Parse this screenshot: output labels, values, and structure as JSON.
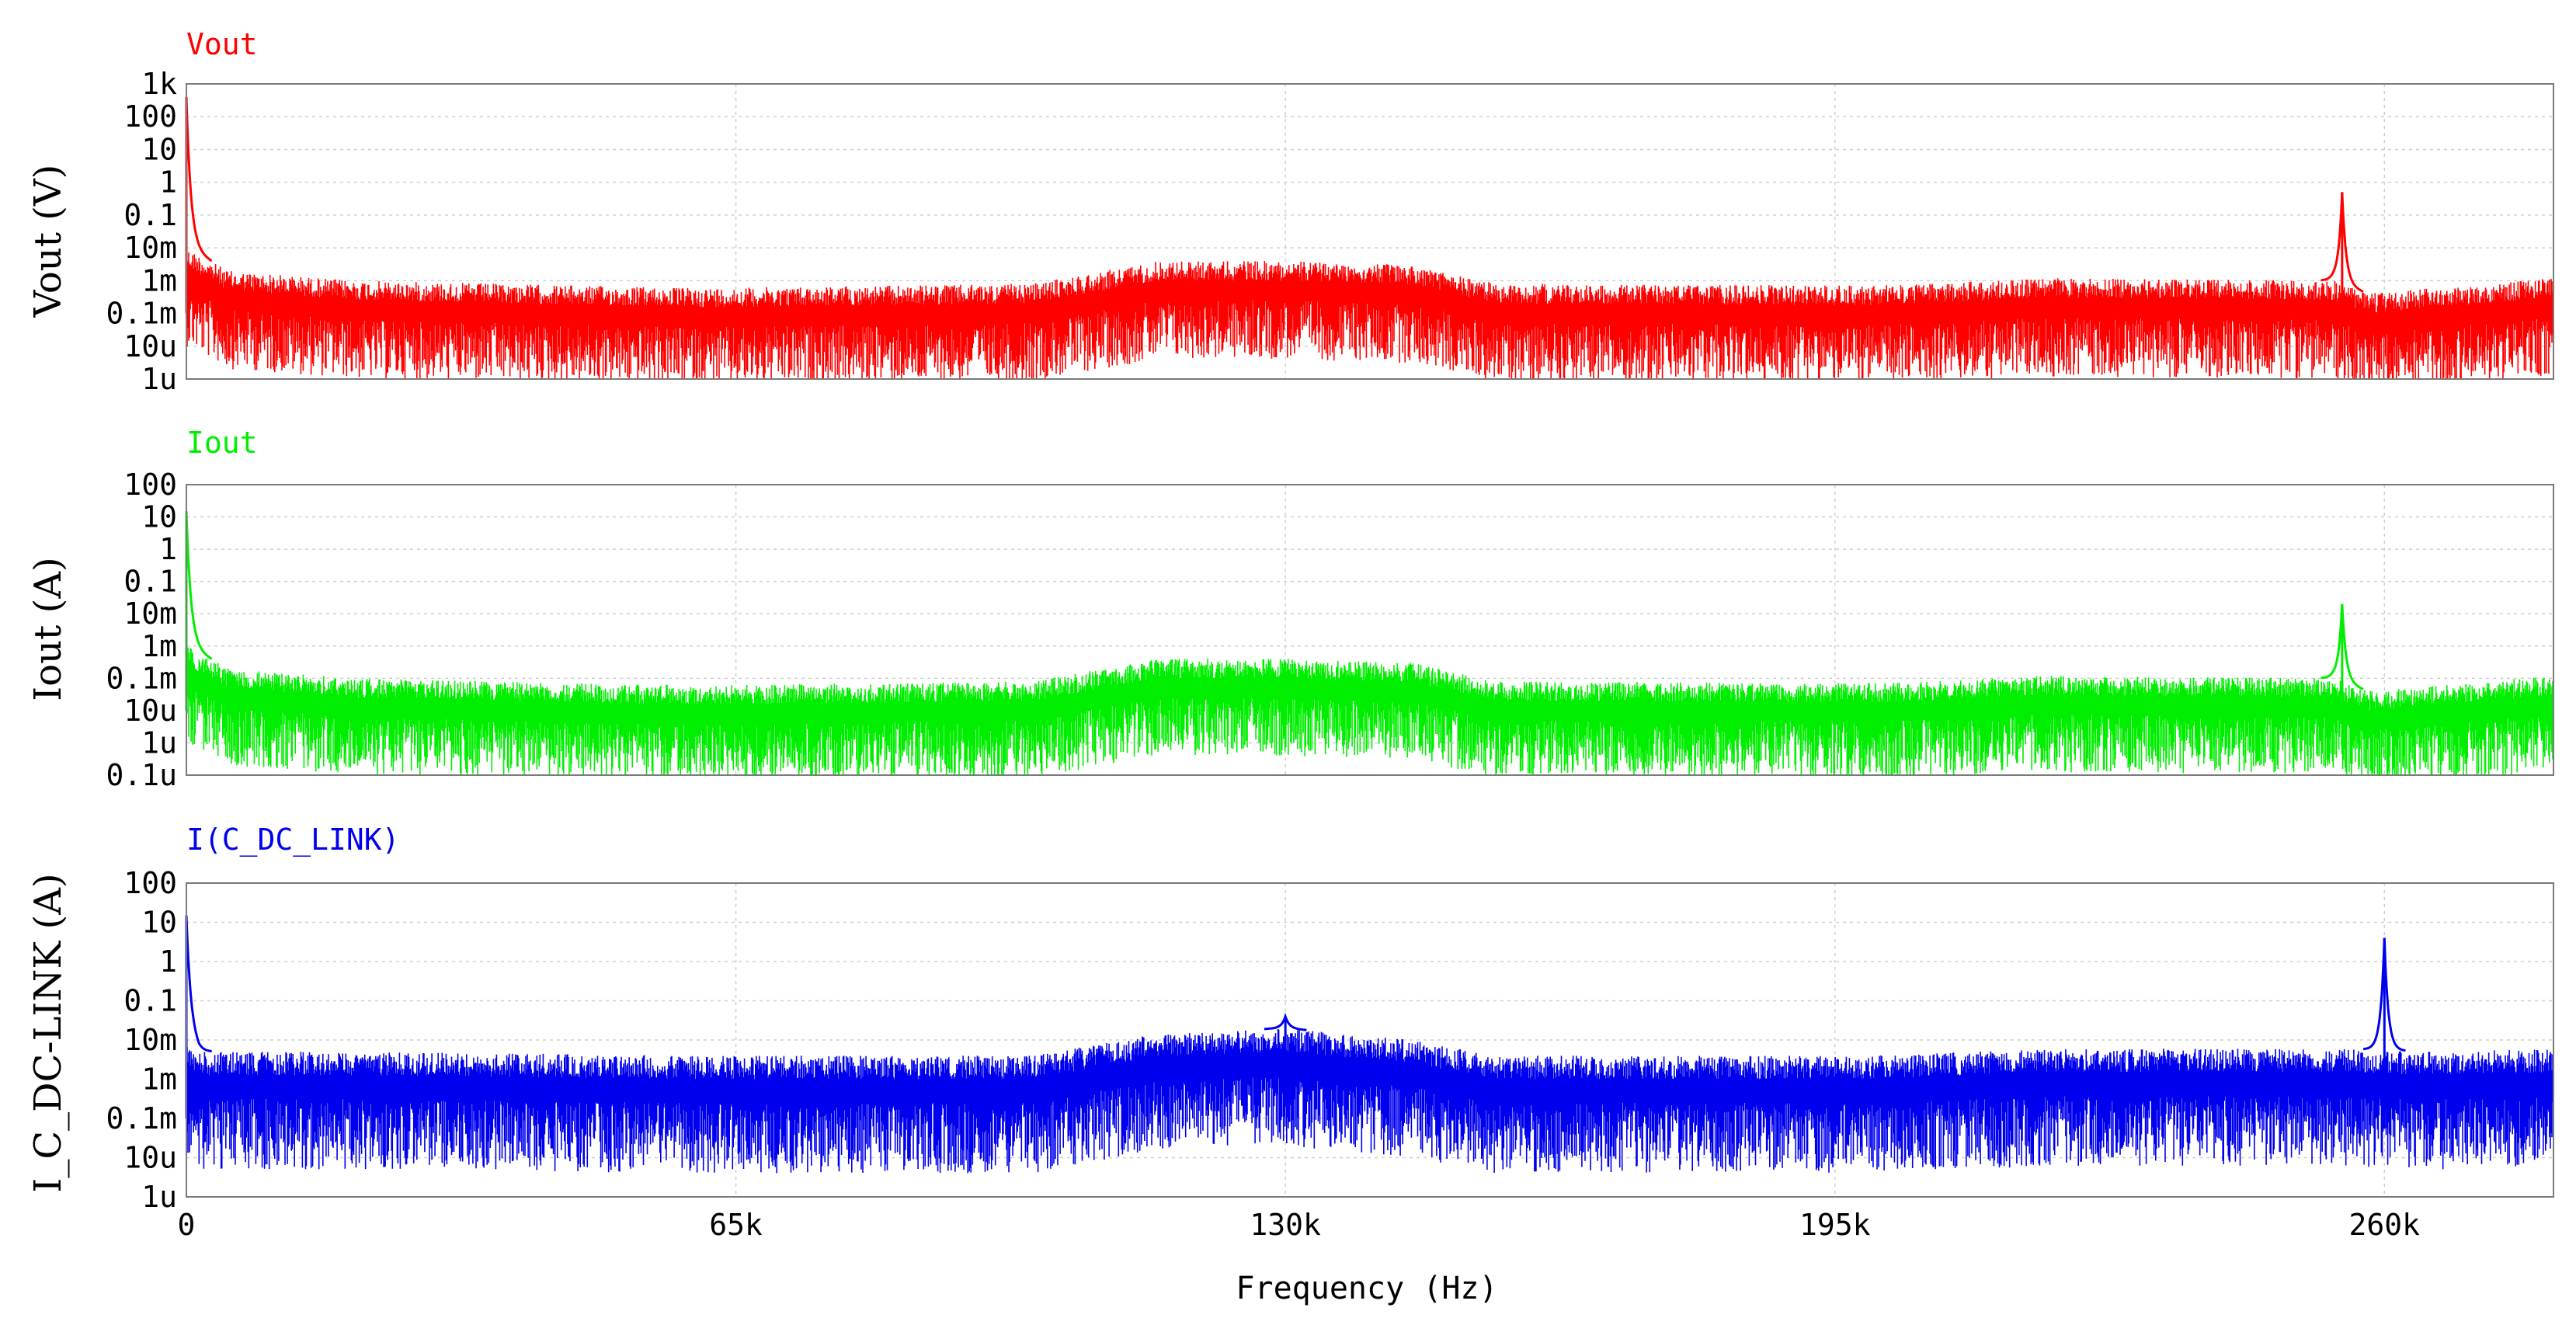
{
  "chart_data": [
    {
      "type": "line",
      "title": "Vout",
      "ylabel": "Vout (V)",
      "xlabel": "",
      "color": "#ff0000",
      "yscale": "log",
      "ylim": [
        1e-06,
        1000
      ],
      "xlim": [
        0,
        280000
      ],
      "yticks": [
        1000,
        100,
        10,
        1,
        0.1,
        0.01,
        0.001,
        0.0001,
        1e-05,
        1e-06
      ],
      "ytick_labels": [
        "1k",
        "100",
        "10",
        "1",
        "0.1",
        "10m",
        "1m",
        "0.1m",
        "10u",
        "1u"
      ],
      "grid": true,
      "series": [
        {
          "name": "Vout",
          "peaks": [
            {
              "x": 0,
              "y": 400
            },
            {
              "x": 255000,
              "y": 0.5
            }
          ],
          "envelope": [
            {
              "x": 0,
              "y": 0.01
            },
            {
              "x": 5000,
              "y": 0.002
            },
            {
              "x": 20000,
              "y": 0.001
            },
            {
              "x": 60000,
              "y": 0.0006
            },
            {
              "x": 100000,
              "y": 0.0008
            },
            {
              "x": 115000,
              "y": 0.004
            },
            {
              "x": 130000,
              "y": 0.004
            },
            {
              "x": 145000,
              "y": 0.003
            },
            {
              "x": 155000,
              "y": 0.0008
            },
            {
              "x": 200000,
              "y": 0.0007
            },
            {
              "x": 220000,
              "y": 0.0012
            },
            {
              "x": 254000,
              "y": 0.001
            },
            {
              "x": 258000,
              "y": 0.0004
            },
            {
              "x": 280000,
              "y": 0.0012
            }
          ]
        }
      ]
    },
    {
      "type": "line",
      "title": "Iout",
      "ylabel": "Iout (A)",
      "xlabel": "",
      "color": "#00ee00",
      "yscale": "log",
      "ylim": [
        1e-07,
        100
      ],
      "xlim": [
        0,
        280000
      ],
      "yticks": [
        100,
        10,
        1,
        0.1,
        0.01,
        0.001,
        0.0001,
        1e-05,
        1e-06,
        1e-07
      ],
      "ytick_labels": [
        "100",
        "10",
        "1",
        "0.1",
        "10m",
        "1m",
        "0.1m",
        "10u",
        "1u",
        "0.1u"
      ],
      "grid": true,
      "series": [
        {
          "name": "Iout",
          "peaks": [
            {
              "x": 0,
              "y": 15
            },
            {
              "x": 255000,
              "y": 0.02
            }
          ],
          "envelope": [
            {
              "x": 0,
              "y": 0.001
            },
            {
              "x": 5000,
              "y": 0.0002
            },
            {
              "x": 20000,
              "y": 0.0001
            },
            {
              "x": 60000,
              "y": 6e-05
            },
            {
              "x": 100000,
              "y": 8e-05
            },
            {
              "x": 115000,
              "y": 0.0004
            },
            {
              "x": 130000,
              "y": 0.0004
            },
            {
              "x": 145000,
              "y": 0.0003
            },
            {
              "x": 155000,
              "y": 8e-05
            },
            {
              "x": 200000,
              "y": 7e-05
            },
            {
              "x": 220000,
              "y": 0.00012
            },
            {
              "x": 254000,
              "y": 0.0001
            },
            {
              "x": 258000,
              "y": 4e-05
            },
            {
              "x": 280000,
              "y": 0.00012
            }
          ]
        }
      ]
    },
    {
      "type": "line",
      "title": "I(C_DC_LINK)",
      "ylabel": "I_C_DC-LINK (A)",
      "xlabel": "Frequency (Hz)",
      "color": "#0000ee",
      "yscale": "log",
      "ylim": [
        1e-06,
        100
      ],
      "xlim": [
        0,
        280000
      ],
      "yticks": [
        100,
        10,
        1,
        0.1,
        0.01,
        0.001,
        0.0001,
        1e-05,
        1e-06
      ],
      "ytick_labels": [
        "100",
        "10",
        "1",
        "0.1",
        "10m",
        "1m",
        "0.1m",
        "10u",
        "1u"
      ],
      "xticks": [
        0,
        65000,
        130000,
        195000,
        260000
      ],
      "xtick_labels": [
        "0",
        "65k",
        "130k",
        "195k",
        "260k"
      ],
      "grid": true,
      "series": [
        {
          "name": "I(C_DC_LINK)",
          "peaks": [
            {
              "x": 0,
              "y": 15
            },
            {
              "x": 130000,
              "y": 0.04
            },
            {
              "x": 260000,
              "y": 4
            }
          ],
          "envelope": [
            {
              "x": 0,
              "y": 0.01
            },
            {
              "x": 1500,
              "y": 0.005
            },
            {
              "x": 20000,
              "y": 0.005
            },
            {
              "x": 60000,
              "y": 0.004
            },
            {
              "x": 100000,
              "y": 0.004
            },
            {
              "x": 115000,
              "y": 0.015
            },
            {
              "x": 130000,
              "y": 0.02
            },
            {
              "x": 145000,
              "y": 0.01
            },
            {
              "x": 155000,
              "y": 0.004
            },
            {
              "x": 200000,
              "y": 0.004
            },
            {
              "x": 220000,
              "y": 0.006
            },
            {
              "x": 255000,
              "y": 0.006
            },
            {
              "x": 265000,
              "y": 0.005
            },
            {
              "x": 280000,
              "y": 0.006
            }
          ]
        }
      ]
    }
  ]
}
